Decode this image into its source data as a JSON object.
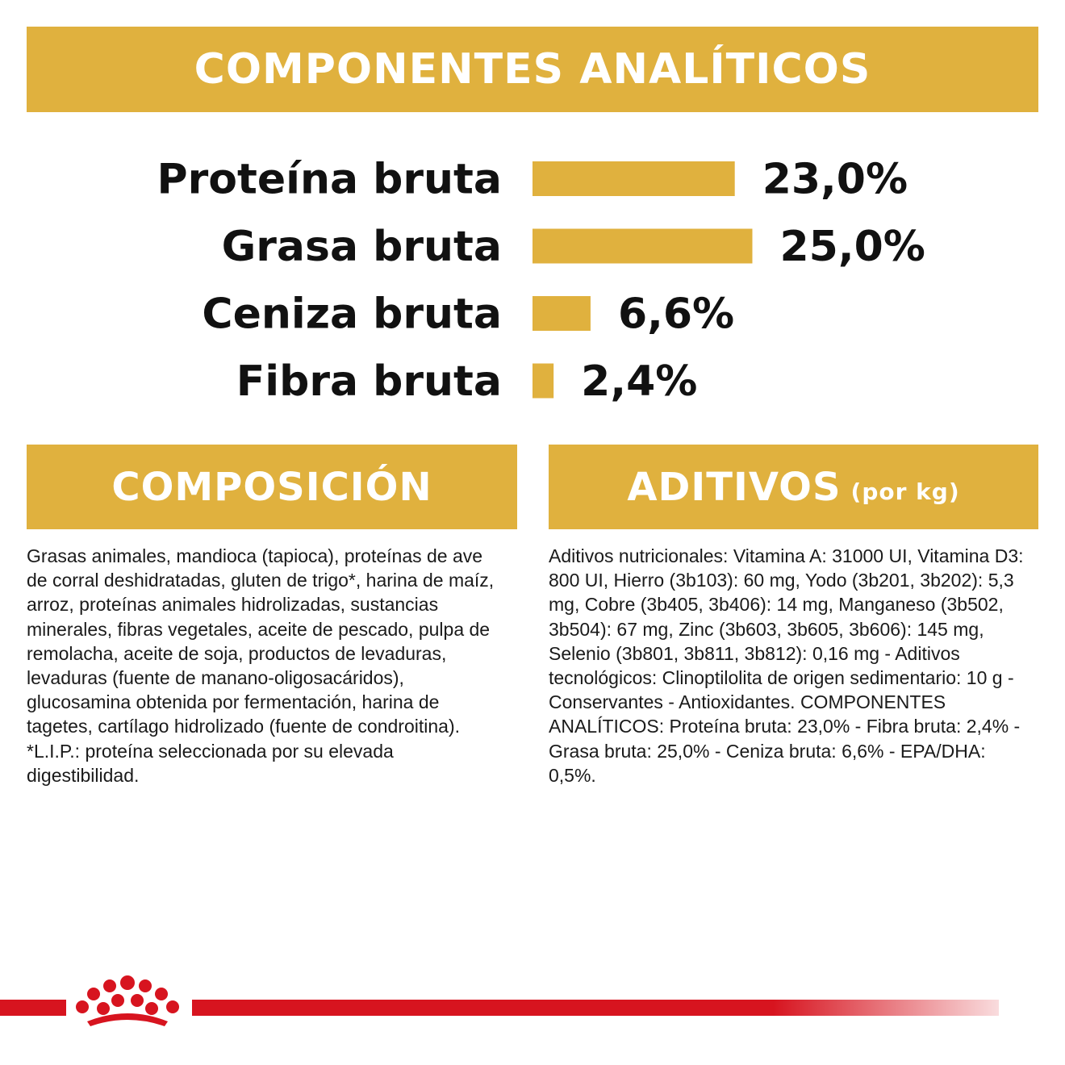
{
  "sections": {
    "analytic_title": "COMPONENTES ANALÍTICOS",
    "composition_title": "COMPOSICIÓN",
    "additives_title": "ADITIVOS",
    "additives_title_suffix": "(por kg)"
  },
  "chart_data": {
    "type": "bar",
    "orientation": "horizontal",
    "categories": [
      "Proteína bruta",
      "Grasa bruta",
      "Ceniza bruta",
      "Fibra bruta"
    ],
    "values": [
      23.0,
      25.0,
      6.6,
      2.4
    ],
    "value_labels": [
      "23,0%",
      "25,0%",
      "6,6%",
      "2,4%"
    ],
    "unit": "%",
    "bar_color": "#e0b13e",
    "grid": false,
    "legend": "none"
  },
  "composition_text": "Grasas animales, mandioca (tapioca), proteínas de ave de corral deshidratadas, gluten de trigo*, harina de maíz, arroz, proteínas animales hidrolizadas, sustancias minerales, fibras vegetales, aceite de pescado, pulpa de remolacha, aceite de soja, productos de levaduras, levaduras (fuente de manano-oligosacáridos), glucosamina obtenida por fermentación, harina de tagetes, cartílago hidrolizado (fuente de condroitina). *L.I.P.: proteína seleccionada por su elevada digestibilidad.",
  "additives_text": "Aditivos nutricionales: Vitamina A: 31000 UI, Vitamina D3: 800 UI, Hierro (3b103): 60 mg, Yodo (3b201, 3b202): 5,3 mg, Cobre (3b405, 3b406): 14 mg, Manganeso (3b502, 3b504): 67 mg, Zinc (3b603, 3b605, 3b606): 145 mg, Selenio (3b801, 3b811, 3b812): 0,16 mg - Aditivos tecnológicos: Clinoptilolita de origen sedimentario: 10 g - Conservantes - Antioxidantes. COMPONENTES ANALÍTICOS: Proteína bruta: 23,0% - Fibra bruta: 2,4% - Grasa bruta: 25,0% - Ceniza bruta: 6,6% - EPA/DHA: 0,5%.",
  "colors": {
    "accent": "#e0b13e",
    "brand_red": "#d7141f"
  },
  "icons": {
    "logo": "royal-crown-icon"
  }
}
